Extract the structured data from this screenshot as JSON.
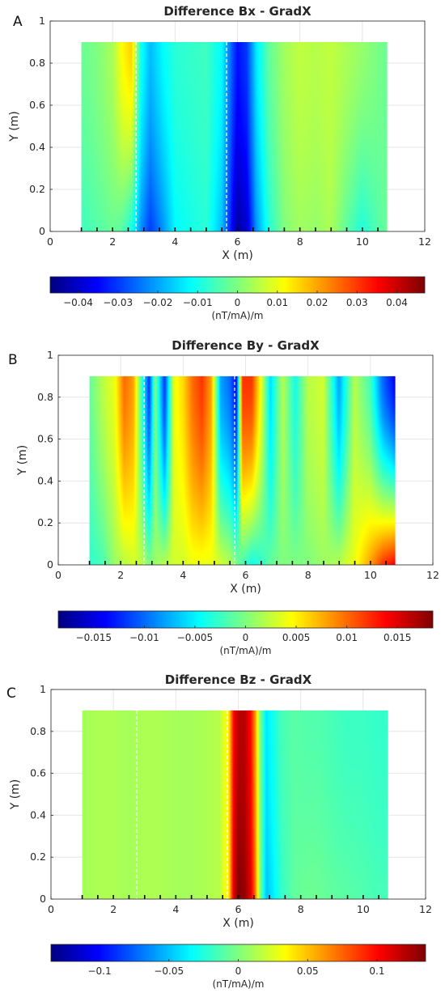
{
  "chart_data": [
    {
      "type": "heatmap",
      "panel_label": "A",
      "title": "Difference Bx - GradX",
      "xlabel": "X (m)",
      "ylabel": "Y (m)",
      "xlim": [
        0,
        12
      ],
      "ylim": [
        0,
        1
      ],
      "xticks": [
        0,
        2,
        4,
        6,
        8,
        10,
        12
      ],
      "yticks": [
        0,
        0.2,
        0.4,
        0.6,
        0.8,
        1
      ],
      "data_extent": {
        "x": [
          1,
          10.8
        ],
        "y": [
          0,
          0.9
        ]
      },
      "dashed_lines_x": [
        2.75,
        5.65
      ],
      "sensor_marks_x": [
        1.0,
        1.5,
        2.0,
        2.5,
        3.0,
        3.5,
        4.0,
        4.5,
        5.0,
        5.5,
        6.0,
        6.5,
        7.0,
        7.5,
        8.0,
        8.5,
        9.0,
        9.5,
        10.0,
        10.5
      ],
      "colorbar": {
        "colormap": "jet",
        "clim": [
          -0.047,
          0.047
        ],
        "ticks": [
          -0.04,
          -0.03,
          -0.02,
          -0.01,
          0,
          0.01,
          0.02,
          0.03,
          0.04
        ],
        "tick_labels": [
          "−0.04",
          "−0.03",
          "−0.02",
          "−0.01",
          "0",
          "0.01",
          "0.02",
          "0.03",
          "0.04"
        ],
        "label": "(nT/mA)/m"
      },
      "x_profile": {
        "x": [
          1.0,
          1.5,
          2.0,
          2.3,
          2.6,
          2.9,
          3.2,
          3.6,
          4.0,
          4.5,
          5.0,
          5.5,
          5.8,
          6.0,
          6.3,
          6.6,
          7.0,
          7.5,
          8.0,
          8.5,
          9.0,
          9.5,
          10.0,
          10.4,
          10.8
        ],
        "top": [
          -0.002,
          0,
          0.004,
          0.012,
          0.016,
          -0.01,
          -0.018,
          -0.012,
          -0.008,
          -0.007,
          -0.006,
          -0.012,
          -0.026,
          -0.034,
          -0.03,
          -0.014,
          -0.003,
          0.003,
          0.006,
          0.005,
          0.006,
          0.004,
          0.002,
          0,
          -0.002
        ],
        "bottom": [
          -0.006,
          -0.004,
          -0.002,
          -0.004,
          -0.01,
          -0.022,
          -0.03,
          -0.022,
          -0.012,
          -0.01,
          -0.008,
          -0.018,
          -0.034,
          -0.044,
          -0.04,
          -0.022,
          -0.009,
          0,
          0.003,
          0.002,
          0.004,
          -0.003,
          -0.009,
          -0.005,
          -0.002
        ]
      },
      "blobs": []
    },
    {
      "type": "heatmap",
      "panel_label": "B",
      "title": "Difference By - GradX",
      "xlabel": "X (m)",
      "ylabel": "Y (m)",
      "xlim": [
        0,
        12
      ],
      "ylim": [
        0,
        1
      ],
      "xticks": [
        0,
        2,
        4,
        6,
        8,
        10,
        12
      ],
      "yticks": [
        0,
        0.2,
        0.4,
        0.6,
        0.8,
        1
      ],
      "data_extent": {
        "x": [
          1,
          10.8
        ],
        "y": [
          0,
          0.9
        ]
      },
      "dashed_lines_x": [
        2.75,
        5.65
      ],
      "sensor_marks_x": [
        1.0,
        1.5,
        2.0,
        2.5,
        3.0,
        3.5,
        4.0,
        4.5,
        5.0,
        5.5,
        6.0,
        6.5,
        7.0,
        7.5,
        8.0,
        8.5,
        9.0,
        9.5,
        10.0,
        10.5
      ],
      "colorbar": {
        "colormap": "jet",
        "clim": [
          -0.0185,
          0.0185
        ],
        "ticks": [
          -0.015,
          -0.01,
          -0.005,
          0,
          0.005,
          0.01,
          0.015
        ],
        "tick_labels": [
          "−0.015",
          "−0.01",
          "−0.005",
          "0",
          "0.005",
          "0.01",
          "0.015"
        ],
        "label": "(nT/mA)/m"
      },
      "x_profile": {
        "x": [
          1.0,
          1.4,
          1.8,
          2.1,
          2.4,
          2.7,
          2.9,
          3.1,
          3.4,
          3.7,
          4.0,
          4.3,
          4.6,
          4.9,
          5.2,
          5.5,
          5.7,
          5.9,
          6.2,
          6.5,
          6.8,
          7.2,
          7.6,
          8.0,
          8.5,
          9.0,
          9.5,
          10.0,
          10.4,
          10.8
        ],
        "top": [
          -0.001,
          0.002,
          0.004,
          0.01,
          0.008,
          -0.004,
          -0.012,
          0,
          -0.012,
          0.004,
          0.006,
          0.01,
          0.012,
          0.008,
          -0.008,
          -0.01,
          -0.014,
          0.012,
          0.012,
          0.004,
          -0.006,
          0.002,
          -0.004,
          0.002,
          0.003,
          -0.008,
          0.002,
          -0.002,
          -0.01,
          -0.014
        ],
        "bottom": [
          -0.003,
          -0.002,
          0.001,
          0.002,
          0.003,
          0.002,
          0,
          0.001,
          0.002,
          0.003,
          0.003,
          0.004,
          0.004,
          0.004,
          0.003,
          0.002,
          0,
          -0.002,
          -0.004,
          -0.003,
          -0.001,
          0,
          0,
          0,
          0.001,
          0.002,
          0.004,
          0.008,
          0.012,
          0.014
        ]
      },
      "blobs": []
    },
    {
      "type": "heatmap",
      "panel_label": "C",
      "title": "Difference Bz - GradX",
      "xlabel": "X (m)",
      "ylabel": "Y (m)",
      "xlim": [
        0,
        12
      ],
      "ylim": [
        0,
        1
      ],
      "xticks": [
        0,
        2,
        4,
        6,
        8,
        10,
        12
      ],
      "yticks": [
        0,
        0.2,
        0.4,
        0.6,
        0.8,
        1
      ],
      "data_extent": {
        "x": [
          1,
          10.8
        ],
        "y": [
          0,
          0.9
        ]
      },
      "dashed_lines_x": [
        2.75,
        5.65
      ],
      "sensor_marks_x": [
        1.0,
        1.5,
        2.0,
        2.5,
        3.0,
        3.5,
        4.0,
        4.5,
        5.0,
        5.5,
        6.0,
        6.5,
        7.0,
        7.5,
        8.0,
        8.5,
        9.0,
        9.5,
        10.0,
        10.5
      ],
      "colorbar": {
        "colormap": "jet",
        "clim": [
          -0.135,
          0.135
        ],
        "ticks": [
          -0.1,
          -0.05,
          0,
          0.05,
          0.1
        ],
        "tick_labels": [
          "−0.1",
          "−0.05",
          "0",
          "0.05",
          "0.1"
        ],
        "label": "(nT/mA)/m"
      },
      "x_profile": {
        "x": [
          1.0,
          1.5,
          2.0,
          2.5,
          3.0,
          3.5,
          4.0,
          4.5,
          5.0,
          5.4,
          5.7,
          5.85,
          6.0,
          6.2,
          6.4,
          6.55,
          6.7,
          6.9,
          7.1,
          7.4,
          7.8,
          8.2,
          8.6,
          9.0,
          9.5,
          10.0,
          10.5,
          10.8
        ],
        "top": [
          0.01,
          0.012,
          0.012,
          0.01,
          0.012,
          0.012,
          0.01,
          0.01,
          0.012,
          0.015,
          0.04,
          0.1,
          0.12,
          0.12,
          0.1,
          0.06,
          0.0,
          -0.04,
          -0.03,
          -0.015,
          -0.01,
          -0.012,
          -0.012,
          -0.015,
          -0.018,
          -0.018,
          -0.02,
          -0.02
        ],
        "bottom": [
          0.01,
          0.012,
          0.012,
          0.01,
          0.012,
          0.012,
          0.01,
          0.01,
          0.012,
          0.015,
          0.04,
          0.11,
          0.135,
          0.13,
          0.11,
          0.07,
          0.0,
          -0.05,
          -0.04,
          -0.02,
          -0.008,
          -0.005,
          -0.005,
          -0.008,
          -0.01,
          -0.012,
          -0.015,
          -0.015
        ]
      },
      "blobs": []
    }
  ]
}
